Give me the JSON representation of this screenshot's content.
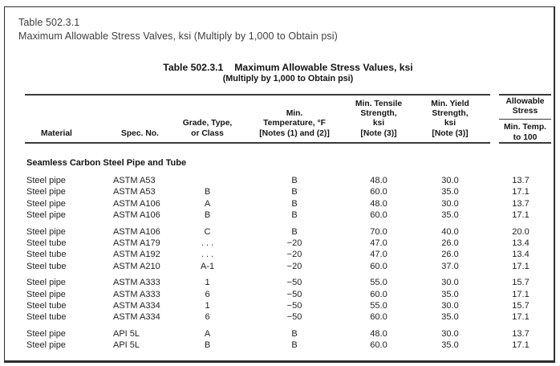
{
  "colors": {
    "text": "#1f1f1f",
    "rule": "#3a3a3a",
    "frame_border": "#2e2e2e",
    "caption_text": "#3e3e3e"
  },
  "page_caption": {
    "line1": "Table 502.3.1",
    "line2": "Maximum Allowable Stress Valves, ksi (Multiply by 1,000 to Obtain psi)"
  },
  "table": {
    "title_label": "Table 502.3.1",
    "title_text": "Maximum Allowable Stress Values, ksi",
    "subtitle": "(Multiply by 1,000 to Obtain psi)",
    "columns": {
      "material": "Material",
      "spec_no": "Spec. No.",
      "grade": "Grade, Type,\nor Class",
      "min_temp": "Min.\nTemperature, °F\n[Notes (1) and (2)]",
      "tensile": "Min. Tensile\nStrength,\nksi\n[Note (3)]",
      "yield": "Min. Yield\nStrength,\nksi\n[Note (3)]",
      "allowable_spanner": "Allowable\nStress",
      "allowable_sub": "Min. Temp.\nto 100"
    },
    "section": "Seamless Carbon Steel Pipe and Tube",
    "groups": [
      {
        "rows": [
          [
            "Steel pipe",
            "ASTM A53",
            "",
            "B",
            "48.0",
            "30.0",
            "13.7"
          ],
          [
            "Steel pipe",
            "ASTM A53",
            "B",
            "B",
            "60.0",
            "35.0",
            "17.1"
          ],
          [
            "Steel pipe",
            "ASTM A106",
            "A",
            "B",
            "48.0",
            "30.0",
            "13.7"
          ],
          [
            "Steel pipe",
            "ASTM A106",
            "B",
            "B",
            "60.0",
            "35.0",
            "17.1"
          ]
        ]
      },
      {
        "rows": [
          [
            "Steel pipe",
            "ASTM A106",
            "C",
            "B",
            "70.0",
            "40.0",
            "20.0"
          ],
          [
            "Steel tube",
            "ASTM A179",
            ". . .",
            "−20",
            "47.0",
            "26.0",
            "13.4"
          ],
          [
            "Steel tube",
            "ASTM A192",
            ". . .",
            "−20",
            "47.0",
            "26.0",
            "13.4"
          ],
          [
            "Steel tube",
            "ASTM A210",
            "A-1",
            "−20",
            "60.0",
            "37.0",
            "17.1"
          ]
        ]
      },
      {
        "rows": [
          [
            "Steel pipe",
            "ASTM A333",
            "1",
            "−50",
            "55.0",
            "30.0",
            "15.7"
          ],
          [
            "Steel pipe",
            "ASTM A333",
            "6",
            "−50",
            "60.0",
            "35.0",
            "17.1"
          ],
          [
            "Steel tube",
            "ASTM A334",
            "1",
            "−50",
            "55.0",
            "30.0",
            "15.7"
          ],
          [
            "Steel tube",
            "ASTM A334",
            "6",
            "−50",
            "60.0",
            "35.0",
            "17.1"
          ]
        ]
      },
      {
        "rows": [
          [
            "Steel pipe",
            "API 5L",
            "A",
            "B",
            "48.0",
            "30.0",
            "13.7"
          ],
          [
            "Steel pipe",
            "API 5L",
            "B",
            "B",
            "60.0",
            "35.0",
            "17.1"
          ]
        ]
      }
    ]
  }
}
